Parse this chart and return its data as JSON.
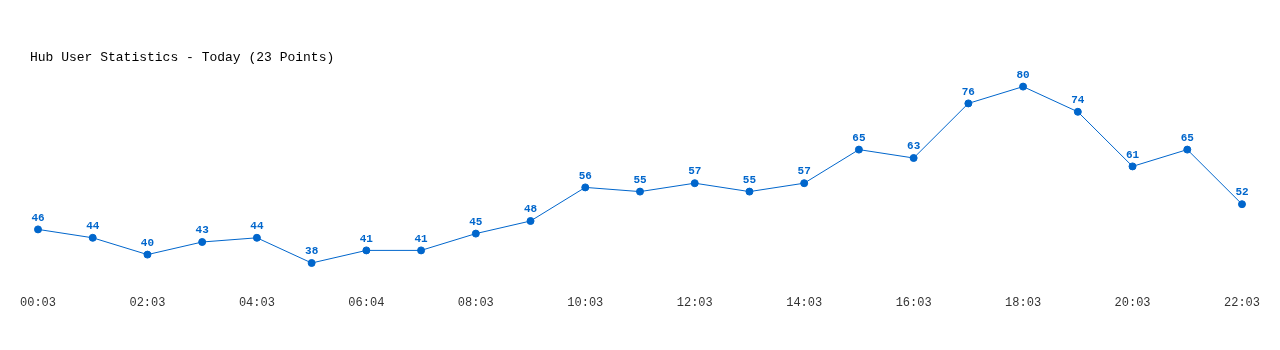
{
  "chart_data": {
    "type": "line",
    "title": "Hub User Statistics - Today (23 Points)",
    "categories": [
      "00:03",
      null,
      "02:03",
      null,
      "04:03",
      null,
      "06:04",
      null,
      "08:03",
      null,
      "10:03",
      null,
      "12:03",
      null,
      "14:03",
      null,
      "16:03",
      null,
      "18:03",
      null,
      "20:03",
      null,
      "22:03"
    ],
    "series": [
      {
        "color": "#0066cc",
        "values": [
          46,
          44,
          40,
          43,
          44,
          38,
          41,
          41,
          45,
          48,
          56,
          55,
          57,
          55,
          57,
          65,
          63,
          76,
          80,
          74,
          61,
          65,
          52
        ]
      }
    ],
    "data_labels": true,
    "marker": "circle",
    "line_style": "solid",
    "grid": false,
    "legend": false,
    "tick_labels": "x"
  }
}
